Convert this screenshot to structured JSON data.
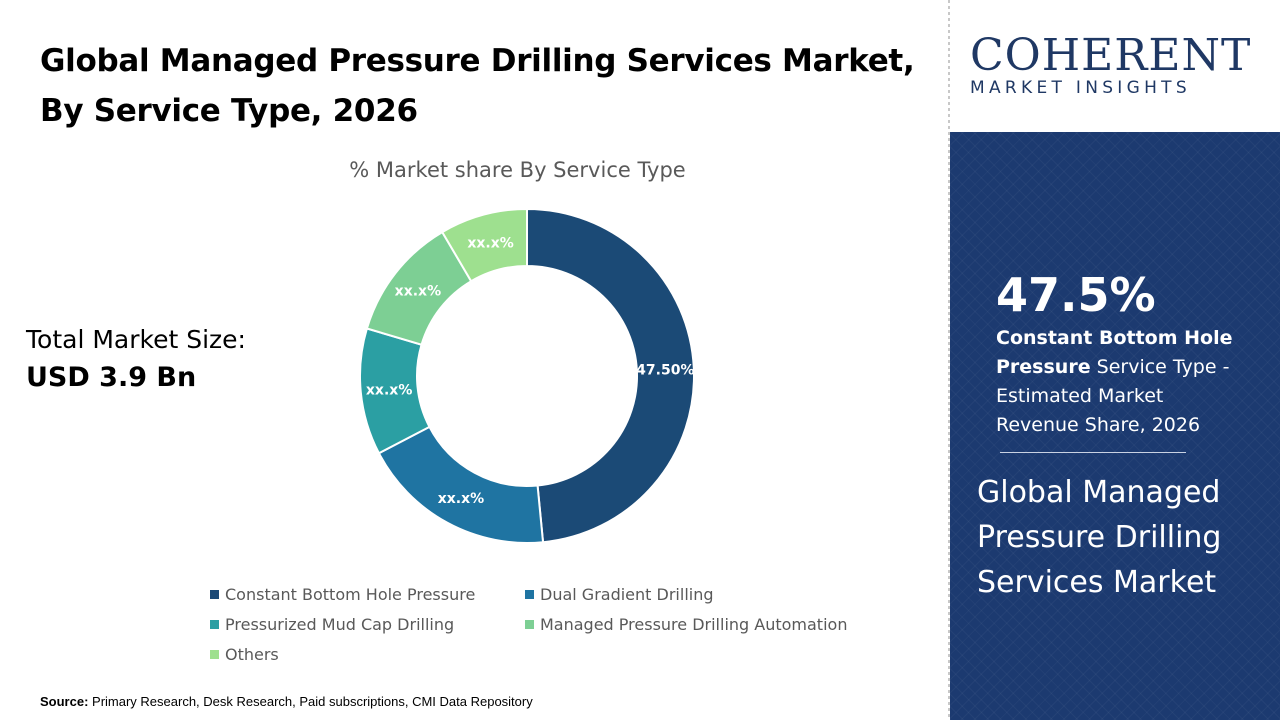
{
  "title": "Global Managed Pressure Drilling Services Market, By Service Type, 2026",
  "total_market": {
    "label": "Total Market Size:",
    "value": "USD 3.9 Bn"
  },
  "logo": {
    "main": "COHERENT",
    "sub": "MARKET INSIGHTS"
  },
  "highlight": {
    "value": "47.5%",
    "segment_bold": "Constant Bottom Hole Pressure",
    "description": " Service Type - Estimated Market Revenue Share, 2026",
    "market_name": "Global Managed Pressure Drilling Services Market"
  },
  "source": {
    "label": "Source:",
    "text": " Primary Research, Desk Research, Paid subscriptions, CMI Data Repository"
  },
  "colors": {
    "panel_bg": "#1c3a70",
    "brand": "#1f3864"
  },
  "chart_data": {
    "type": "pie",
    "donut": true,
    "title": "% Market share By Service Type",
    "legend_position": "bottom",
    "series": [
      {
        "name": "Constant Bottom Hole Pressure",
        "value": 47.5,
        "label": "47.50%",
        "color": "#1b4a76"
      },
      {
        "name": "Dual Gradient Drilling",
        "value": 18.5,
        "label": "xx.x%",
        "color": "#1f74a2"
      },
      {
        "name": "Pressurized Mud Cap Drilling",
        "value": 12.0,
        "label": "xx.x%",
        "color": "#2b9fa3"
      },
      {
        "name": "Managed Pressure Drilling Automation",
        "value": 11.7,
        "label": "xx.x%",
        "color": "#7dcf94"
      },
      {
        "name": "Others",
        "value": 8.3,
        "label": "xx.x%",
        "color": "#9ee08f"
      }
    ]
  }
}
